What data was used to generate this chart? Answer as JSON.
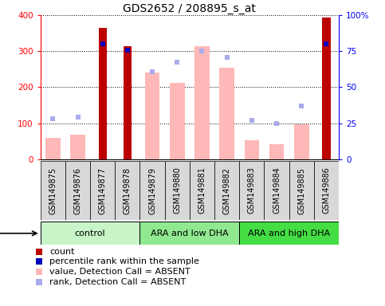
{
  "title": "GDS2652 / 208895_s_at",
  "samples": [
    "GSM149875",
    "GSM149876",
    "GSM149877",
    "GSM149878",
    "GSM149879",
    "GSM149880",
    "GSM149881",
    "GSM149882",
    "GSM149883",
    "GSM149884",
    "GSM149885",
    "GSM149886"
  ],
  "groups": [
    {
      "label": "control",
      "start": 0,
      "end": 4,
      "color": "#c8f5c8"
    },
    {
      "label": "ARA and low DHA",
      "start": 4,
      "end": 8,
      "color": "#90e890"
    },
    {
      "label": "ARA and high DHA",
      "start": 8,
      "end": 12,
      "color": "#44dd44"
    }
  ],
  "count_values": [
    null,
    null,
    365,
    315,
    null,
    null,
    null,
    null,
    null,
    null,
    null,
    393
  ],
  "count_color": "#bb0000",
  "percentile_values": [
    null,
    null,
    80,
    75.5,
    null,
    null,
    null,
    null,
    null,
    null,
    null,
    80
  ],
  "percentile_color": "#0000bb",
  "absent_value": [
    60,
    68,
    null,
    null,
    240,
    213,
    315,
    255,
    53,
    42,
    97,
    null
  ],
  "absent_color": "#ffb8b8",
  "absent_rank": [
    28,
    29.25,
    null,
    null,
    60.75,
    67.5,
    75,
    70.75,
    26.75,
    25,
    37,
    null
  ],
  "absent_rank_color": "#aaaaee",
  "ylim": [
    0,
    400
  ],
  "y2lim": [
    0,
    100
  ],
  "yticks": [
    0,
    100,
    200,
    300,
    400
  ],
  "ytick_labels": [
    "0",
    "100",
    "200",
    "300",
    "400"
  ],
  "y2ticks": [
    0,
    25,
    50,
    75,
    100
  ],
  "y2tick_labels": [
    "0",
    "25",
    "50",
    "75",
    "100%"
  ],
  "bar_width": 0.6,
  "dot_size": 25,
  "title_fontsize": 10,
  "axis_fontsize": 7.5,
  "tick_fontsize": 7,
  "label_fontsize": 8,
  "legend_fontsize": 8
}
